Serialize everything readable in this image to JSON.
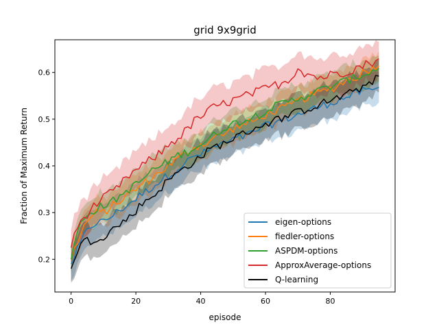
{
  "chart_data": {
    "type": "line",
    "title": "grid  9x9grid",
    "xlabel": "episode",
    "ylabel": "Fraction of Maximum Return",
    "xlim": [
      -5,
      100
    ],
    "ylim": [
      0.13,
      0.67
    ],
    "xticks": [
      0,
      20,
      40,
      60,
      80
    ],
    "yticks": [
      0.2,
      0.3,
      0.4,
      0.5,
      0.6
    ],
    "xtick_labels": [
      "0",
      "20",
      "40",
      "60",
      "80"
    ],
    "ytick_labels": [
      "0.2",
      "0.3",
      "0.4",
      "0.5",
      "0.6"
    ],
    "grid": false,
    "legend_position": "lower-right",
    "series": [
      {
        "name": "eigen-options",
        "color": "#1f77b4",
        "band_halfwidth": 0.035,
        "noise": 0.009,
        "points": [
          [
            0,
            0.19
          ],
          [
            2,
            0.22
          ],
          [
            4,
            0.25
          ],
          [
            6,
            0.27
          ],
          [
            8,
            0.28
          ],
          [
            10,
            0.28
          ],
          [
            12,
            0.29
          ],
          [
            14,
            0.3
          ],
          [
            16,
            0.31
          ],
          [
            18,
            0.32
          ],
          [
            20,
            0.33
          ],
          [
            22,
            0.34
          ],
          [
            24,
            0.35
          ],
          [
            26,
            0.36
          ],
          [
            28,
            0.37
          ],
          [
            30,
            0.38
          ],
          [
            32,
            0.39
          ],
          [
            34,
            0.4
          ],
          [
            36,
            0.41
          ],
          [
            38,
            0.42
          ],
          [
            40,
            0.425
          ],
          [
            42,
            0.43
          ],
          [
            44,
            0.44
          ],
          [
            46,
            0.445
          ],
          [
            48,
            0.45
          ],
          [
            50,
            0.455
          ],
          [
            52,
            0.46
          ],
          [
            54,
            0.465
          ],
          [
            56,
            0.47
          ],
          [
            58,
            0.48
          ],
          [
            60,
            0.485
          ],
          [
            62,
            0.49
          ],
          [
            64,
            0.495
          ],
          [
            66,
            0.5
          ],
          [
            68,
            0.505
          ],
          [
            70,
            0.51
          ],
          [
            72,
            0.515
          ],
          [
            74,
            0.52
          ],
          [
            76,
            0.525
          ],
          [
            78,
            0.53
          ],
          [
            80,
            0.535
          ],
          [
            82,
            0.54
          ],
          [
            84,
            0.545
          ],
          [
            86,
            0.55
          ],
          [
            88,
            0.555
          ],
          [
            90,
            0.56
          ],
          [
            92,
            0.56
          ],
          [
            94,
            0.565
          ],
          [
            95,
            0.565
          ]
        ]
      },
      {
        "name": "fiedler-options",
        "color": "#ff7f0e",
        "band_halfwidth": 0.03,
        "noise": 0.009,
        "points": [
          [
            0,
            0.2
          ],
          [
            2,
            0.24
          ],
          [
            4,
            0.27
          ],
          [
            6,
            0.29
          ],
          [
            8,
            0.3
          ],
          [
            10,
            0.3
          ],
          [
            12,
            0.31
          ],
          [
            14,
            0.32
          ],
          [
            16,
            0.33
          ],
          [
            18,
            0.34
          ],
          [
            20,
            0.35
          ],
          [
            22,
            0.36
          ],
          [
            24,
            0.37
          ],
          [
            26,
            0.38
          ],
          [
            28,
            0.39
          ],
          [
            30,
            0.4
          ],
          [
            32,
            0.41
          ],
          [
            34,
            0.42
          ],
          [
            36,
            0.43
          ],
          [
            38,
            0.44
          ],
          [
            40,
            0.445
          ],
          [
            42,
            0.45
          ],
          [
            44,
            0.46
          ],
          [
            46,
            0.465
          ],
          [
            48,
            0.47
          ],
          [
            50,
            0.48
          ],
          [
            52,
            0.485
          ],
          [
            54,
            0.49
          ],
          [
            56,
            0.495
          ],
          [
            58,
            0.5
          ],
          [
            60,
            0.51
          ],
          [
            62,
            0.515
          ],
          [
            64,
            0.52
          ],
          [
            66,
            0.525
          ],
          [
            68,
            0.53
          ],
          [
            70,
            0.54
          ],
          [
            72,
            0.545
          ],
          [
            74,
            0.55
          ],
          [
            76,
            0.555
          ],
          [
            78,
            0.56
          ],
          [
            80,
            0.565
          ],
          [
            82,
            0.57
          ],
          [
            84,
            0.58
          ],
          [
            86,
            0.585
          ],
          [
            88,
            0.59
          ],
          [
            90,
            0.6
          ],
          [
            92,
            0.605
          ],
          [
            94,
            0.615
          ],
          [
            95,
            0.62
          ]
        ]
      },
      {
        "name": "ASPDM-options",
        "color": "#2ca02c",
        "band_halfwidth": 0.03,
        "noise": 0.009,
        "points": [
          [
            0,
            0.2
          ],
          [
            2,
            0.26
          ],
          [
            4,
            0.29
          ],
          [
            6,
            0.3
          ],
          [
            8,
            0.31
          ],
          [
            10,
            0.315
          ],
          [
            12,
            0.32
          ],
          [
            14,
            0.33
          ],
          [
            16,
            0.34
          ],
          [
            18,
            0.35
          ],
          [
            20,
            0.36
          ],
          [
            22,
            0.37
          ],
          [
            24,
            0.385
          ],
          [
            26,
            0.395
          ],
          [
            28,
            0.4
          ],
          [
            30,
            0.41
          ],
          [
            32,
            0.42
          ],
          [
            34,
            0.425
          ],
          [
            36,
            0.43
          ],
          [
            38,
            0.44
          ],
          [
            40,
            0.445
          ],
          [
            42,
            0.455
          ],
          [
            44,
            0.465
          ],
          [
            46,
            0.475
          ],
          [
            48,
            0.485
          ],
          [
            50,
            0.49
          ],
          [
            52,
            0.495
          ],
          [
            54,
            0.5
          ],
          [
            56,
            0.505
          ],
          [
            58,
            0.51
          ],
          [
            60,
            0.52
          ],
          [
            62,
            0.525
          ],
          [
            64,
            0.53
          ],
          [
            66,
            0.535
          ],
          [
            68,
            0.54
          ],
          [
            70,
            0.545
          ],
          [
            72,
            0.55
          ],
          [
            74,
            0.555
          ],
          [
            76,
            0.56
          ],
          [
            78,
            0.565
          ],
          [
            80,
            0.57
          ],
          [
            82,
            0.575
          ],
          [
            84,
            0.58
          ],
          [
            86,
            0.585
          ],
          [
            88,
            0.59
          ],
          [
            90,
            0.595
          ],
          [
            92,
            0.6
          ],
          [
            94,
            0.605
          ],
          [
            95,
            0.61
          ]
        ]
      },
      {
        "name": "ApproxAverage-options",
        "color": "#d62728",
        "band_halfwidth": 0.04,
        "noise": 0.01,
        "points": [
          [
            0,
            0.225
          ],
          [
            2,
            0.27
          ],
          [
            4,
            0.29
          ],
          [
            6,
            0.305
          ],
          [
            8,
            0.32
          ],
          [
            10,
            0.33
          ],
          [
            12,
            0.34
          ],
          [
            14,
            0.35
          ],
          [
            16,
            0.365
          ],
          [
            18,
            0.38
          ],
          [
            20,
            0.39
          ],
          [
            22,
            0.4
          ],
          [
            24,
            0.41
          ],
          [
            26,
            0.42
          ],
          [
            28,
            0.43
          ],
          [
            30,
            0.445
          ],
          [
            32,
            0.455
          ],
          [
            34,
            0.465
          ],
          [
            36,
            0.48
          ],
          [
            38,
            0.495
          ],
          [
            40,
            0.505
          ],
          [
            42,
            0.515
          ],
          [
            44,
            0.525
          ],
          [
            46,
            0.53
          ],
          [
            48,
            0.535
          ],
          [
            50,
            0.54
          ],
          [
            52,
            0.545
          ],
          [
            54,
            0.55
          ],
          [
            56,
            0.555
          ],
          [
            58,
            0.56
          ],
          [
            60,
            0.565
          ],
          [
            62,
            0.57
          ],
          [
            64,
            0.575
          ],
          [
            66,
            0.58
          ],
          [
            68,
            0.59
          ],
          [
            70,
            0.61
          ],
          [
            72,
            0.6
          ],
          [
            74,
            0.595
          ],
          [
            76,
            0.59
          ],
          [
            78,
            0.59
          ],
          [
            80,
            0.595
          ],
          [
            82,
            0.6
          ],
          [
            84,
            0.6
          ],
          [
            86,
            0.605
          ],
          [
            88,
            0.61
          ],
          [
            90,
            0.615
          ],
          [
            92,
            0.62
          ],
          [
            94,
            0.625
          ],
          [
            95,
            0.625
          ]
        ]
      },
      {
        "name": "Q-learning",
        "color": "#000000",
        "band_halfwidth": 0.035,
        "noise": 0.009,
        "points": [
          [
            0,
            0.18
          ],
          [
            2,
            0.22
          ],
          [
            4,
            0.24
          ],
          [
            6,
            0.24
          ],
          [
            8,
            0.245
          ],
          [
            10,
            0.25
          ],
          [
            12,
            0.26
          ],
          [
            14,
            0.27
          ],
          [
            16,
            0.28
          ],
          [
            18,
            0.29
          ],
          [
            20,
            0.305
          ],
          [
            22,
            0.32
          ],
          [
            24,
            0.33
          ],
          [
            26,
            0.34
          ],
          [
            28,
            0.355
          ],
          [
            30,
            0.37
          ],
          [
            32,
            0.38
          ],
          [
            34,
            0.39
          ],
          [
            36,
            0.4
          ],
          [
            38,
            0.41
          ],
          [
            40,
            0.42
          ],
          [
            42,
            0.43
          ],
          [
            44,
            0.44
          ],
          [
            46,
            0.445
          ],
          [
            48,
            0.45
          ],
          [
            50,
            0.46
          ],
          [
            52,
            0.465
          ],
          [
            54,
            0.47
          ],
          [
            56,
            0.48
          ],
          [
            58,
            0.485
          ],
          [
            60,
            0.49
          ],
          [
            62,
            0.495
          ],
          [
            64,
            0.5
          ],
          [
            66,
            0.505
          ],
          [
            68,
            0.51
          ],
          [
            70,
            0.515
          ],
          [
            72,
            0.52
          ],
          [
            74,
            0.525
          ],
          [
            76,
            0.53
          ],
          [
            78,
            0.535
          ],
          [
            80,
            0.54
          ],
          [
            82,
            0.545
          ],
          [
            84,
            0.55
          ],
          [
            86,
            0.555
          ],
          [
            88,
            0.56
          ],
          [
            90,
            0.57
          ],
          [
            92,
            0.58
          ],
          [
            94,
            0.585
          ],
          [
            95,
            0.59
          ]
        ]
      }
    ]
  }
}
